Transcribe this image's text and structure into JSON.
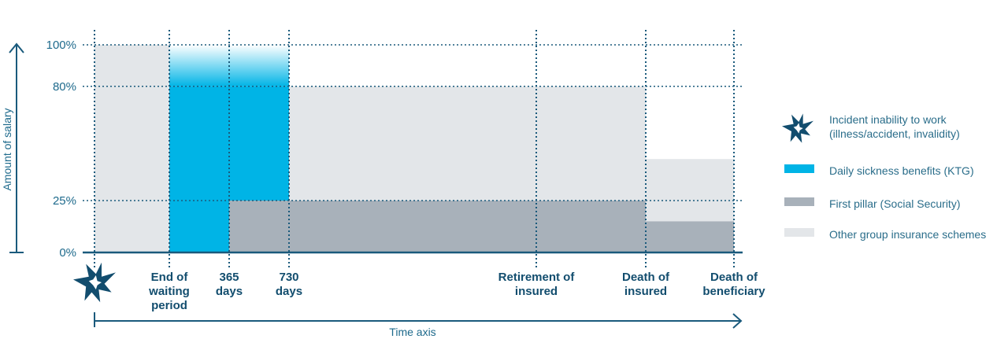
{
  "chart_data": {
    "type": "area",
    "ylabel": "Amount of salary",
    "xlabel": "Time axis",
    "y_ticks": [
      "0%",
      "25%",
      "80%",
      "100%"
    ],
    "y_tick_values": [
      0,
      25,
      80,
      100
    ],
    "events": [
      {
        "id": "incident",
        "label": ""
      },
      {
        "id": "waiting",
        "label": "End of\nwaiting\nperiod"
      },
      {
        "id": "d365",
        "label": "365\ndays"
      },
      {
        "id": "d730",
        "label": "730\ndays"
      },
      {
        "id": "retirement",
        "label": "Retirement of\ninsured"
      },
      {
        "id": "death_insured",
        "label": "Death of\ninsured"
      },
      {
        "id": "death_beneficiary",
        "label": "Death of\nbeneficiary"
      }
    ],
    "segments": [
      {
        "series": "other",
        "from": "incident",
        "to": "waiting",
        "y0": 0,
        "y1": 100
      },
      {
        "series": "ktg",
        "from": "waiting",
        "to": "d730",
        "y0": 0,
        "y1": 80,
        "fade_to": 100
      },
      {
        "series": "first_pillar",
        "from": "d365",
        "to": "d730",
        "y0": 0,
        "y1": 25
      },
      {
        "series": "other",
        "from": "d730",
        "to": "death_insured",
        "y0": 25,
        "y1": 80
      },
      {
        "series": "first_pillar",
        "from": "d730",
        "to": "death_insured",
        "y0": 0,
        "y1": 25
      },
      {
        "series": "other",
        "from": "death_insured",
        "to": "death_beneficiary",
        "y0": 15,
        "y1": 45
      },
      {
        "series": "first_pillar",
        "from": "death_insured",
        "to": "death_beneficiary",
        "y0": 0,
        "y1": 15
      }
    ],
    "grid": "dotted",
    "legend_position": "right"
  },
  "legend": [
    {
      "key": "incident",
      "label_line1": "Incident inability to work",
      "label_line2": "(illness/accident, invalidity)",
      "icon": "star-burst-icon"
    },
    {
      "key": "ktg",
      "label_line1": "Daily sickness benefits (KTG)",
      "color": "#00b4e6"
    },
    {
      "key": "first_pillar",
      "label_line1": "First pillar (Social Security)",
      "color": "#a8b1ba"
    },
    {
      "key": "other",
      "label_line1": "Other group insurance schemes",
      "color": "#e3e6e9"
    }
  ],
  "colors": {
    "axis": "#1a5a7c",
    "text": "#124d6e",
    "ktg": "#00b4e6",
    "first_pillar": "#a8b1ba",
    "other": "#e3e6e9"
  }
}
